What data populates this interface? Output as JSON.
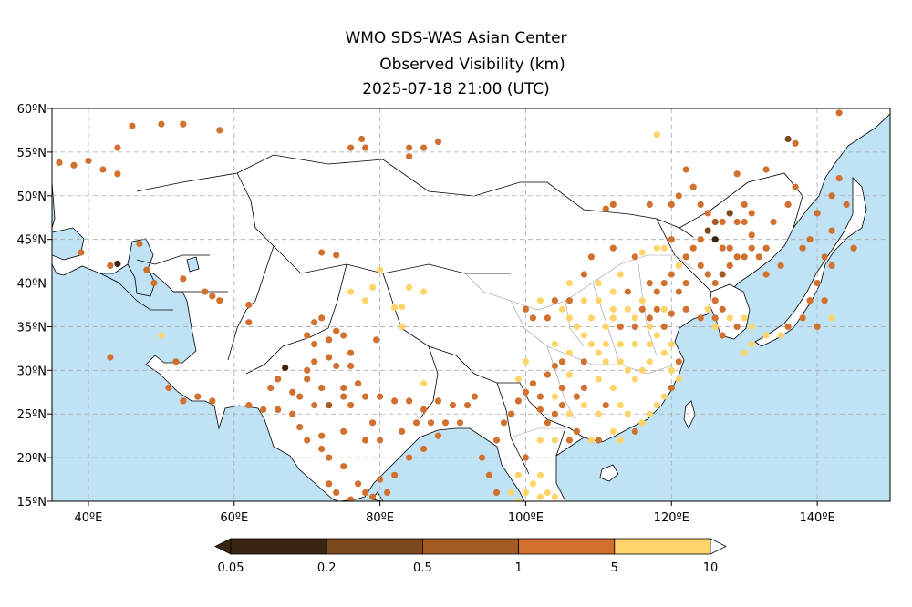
{
  "title": {
    "line1": "WMO SDS-WAS Asian Center",
    "line2": "Observed Visibility (km)",
    "line3": "2025-07-18 21:00 (UTC)"
  },
  "axes": {
    "lon_ticks": [
      "40ºE",
      "60ºE",
      "80ºE",
      "100ºE",
      "120ºE",
      "140ºE"
    ],
    "lon_values": [
      40,
      60,
      80,
      100,
      120,
      140
    ],
    "lat_ticks": [
      "60ºN",
      "55ºN",
      "50ºN",
      "45ºN",
      "40ºN",
      "35ºN",
      "30ºN",
      "25ºN",
      "20ºN",
      "15ºN"
    ],
    "lat_values": [
      60,
      55,
      50,
      45,
      40,
      35,
      30,
      25,
      20,
      15
    ],
    "lon_range": [
      35,
      150
    ],
    "lat_range": [
      15,
      60
    ]
  },
  "colorbar": {
    "labels": [
      "0.05",
      "0.2",
      "0.5",
      "1",
      "5",
      "10"
    ],
    "colors": [
      "#3a2412",
      "#7a4a1e",
      "#a35b24",
      "#d1702f",
      "#ffd46a"
    ]
  },
  "colors": {
    "ocean": "#bfe3f5",
    "land": "#ffffff",
    "border": "#000000",
    "province": "#999999",
    "grid": "#aaaaaa"
  },
  "stations": [
    [
      34.5,
      54.5,
      3
    ],
    [
      36,
      53.8,
      3
    ],
    [
      38,
      53.5,
      3
    ],
    [
      40,
      54,
      3
    ],
    [
      42,
      53,
      3
    ],
    [
      46,
      58,
      3
    ],
    [
      50,
      58.2,
      3
    ],
    [
      53,
      58.2,
      3
    ],
    [
      58,
      57.5,
      3
    ],
    [
      44,
      55.5,
      3
    ],
    [
      44,
      52.5,
      3
    ],
    [
      76,
      55.5,
      3
    ],
    [
      77.5,
      56.5,
      3
    ],
    [
      78,
      55.5,
      3
    ],
    [
      84,
      55.5,
      3
    ],
    [
      84,
      54.5,
      3
    ],
    [
      86,
      55.5,
      3
    ],
    [
      88,
      56.2,
      3
    ],
    [
      39,
      43.5,
      3
    ],
    [
      43,
      42,
      3
    ],
    [
      44,
      42.2,
      0
    ],
    [
      47,
      44.5,
      3
    ],
    [
      48,
      41.5,
      3
    ],
    [
      49,
      40,
      3
    ],
    [
      53,
      40.5,
      3
    ],
    [
      56,
      39,
      3
    ],
    [
      57,
      38.5,
      3
    ],
    [
      58,
      38,
      3
    ],
    [
      62,
      37.5,
      3
    ],
    [
      62,
      35.5,
      3
    ],
    [
      52,
      31,
      3
    ],
    [
      51,
      28,
      3
    ],
    [
      53,
      26.5,
      3
    ],
    [
      55,
      27,
      3
    ],
    [
      57,
      26.5,
      3
    ],
    [
      50,
      34,
      4
    ],
    [
      43,
      31.5,
      3
    ],
    [
      72,
      43.5,
      3
    ],
    [
      74,
      43.2,
      3
    ],
    [
      76,
      39,
      4
    ],
    [
      78,
      38,
      4
    ],
    [
      79,
      39.5,
      4
    ],
    [
      80,
      41.5,
      4
    ],
    [
      82,
      37.2,
      4
    ],
    [
      83,
      37.3,
      4
    ],
    [
      84,
      39.5,
      4
    ],
    [
      86,
      39,
      4
    ],
    [
      67,
      30.3,
      0
    ],
    [
      70,
      34,
      3
    ],
    [
      71,
      35.5,
      3
    ],
    [
      72,
      36,
      3
    ],
    [
      73,
      33.5,
      3
    ],
    [
      74,
      34.5,
      3
    ],
    [
      75,
      34,
      3
    ],
    [
      73,
      31.5,
      3
    ],
    [
      71,
      31,
      3
    ],
    [
      70,
      29,
      3
    ],
    [
      68,
      27.5,
      3
    ],
    [
      66,
      25.5,
      3
    ],
    [
      64,
      25.5,
      3
    ],
    [
      62,
      26,
      3
    ],
    [
      68,
      25,
      3
    ],
    [
      69,
      23.5,
      3
    ],
    [
      71,
      26,
      3
    ],
    [
      72,
      28,
      3
    ],
    [
      74,
      30.5,
      3
    ],
    [
      76,
      30.5,
      3
    ],
    [
      75,
      28,
      3
    ],
    [
      77,
      28.5,
      3
    ],
    [
      78,
      27,
      3
    ],
    [
      80,
      27,
      3
    ],
    [
      82,
      26.5,
      3
    ],
    [
      84,
      26.5,
      3
    ],
    [
      86,
      25.5,
      3
    ],
    [
      88,
      26.5,
      3
    ],
    [
      90,
      26,
      3
    ],
    [
      92,
      26,
      3
    ],
    [
      93,
      27,
      3
    ],
    [
      70,
      22,
      3
    ],
    [
      72,
      22.5,
      3
    ],
    [
      73,
      20,
      3
    ],
    [
      75,
      19,
      3
    ],
    [
      77,
      17,
      3
    ],
    [
      78,
      16,
      3
    ],
    [
      80,
      17.5,
      3
    ],
    [
      82,
      18,
      3
    ],
    [
      84,
      20,
      3
    ],
    [
      86,
      21,
      3
    ],
    [
      88,
      22.5,
      3
    ],
    [
      73,
      17,
      3
    ],
    [
      72,
      21,
      3
    ],
    [
      75,
      23,
      3
    ],
    [
      76,
      26,
      3
    ],
    [
      79,
      24,
      3
    ],
    [
      80,
      22,
      3
    ],
    [
      83,
      23,
      3
    ],
    [
      85,
      24,
      3
    ],
    [
      87,
      24,
      3
    ],
    [
      89,
      24,
      3
    ],
    [
      91,
      24,
      3
    ],
    [
      70,
      30,
      3
    ],
    [
      71,
      33,
      3
    ],
    [
      76,
      32,
      3
    ],
    [
      73,
      26,
      2
    ],
    [
      75,
      27,
      3
    ],
    [
      78,
      22,
      3
    ],
    [
      74,
      16,
      3
    ],
    [
      76,
      15.2,
      3
    ],
    [
      79,
      15.5,
      3
    ],
    [
      81,
      16,
      3
    ],
    [
      69,
      27,
      3
    ],
    [
      65,
      28,
      3
    ],
    [
      66,
      29,
      3
    ],
    [
      79.5,
      33.5,
      3
    ],
    [
      83,
      35,
      4
    ],
    [
      86,
      28.5,
      4
    ],
    [
      98,
      25,
      3
    ],
    [
      99,
      26.5,
      3
    ],
    [
      100,
      27.5,
      3
    ],
    [
      101,
      28.5,
      3
    ],
    [
      103,
      29.5,
      3
    ],
    [
      104,
      30.5,
      3
    ],
    [
      105,
      31,
      3
    ],
    [
      106,
      29.5,
      4
    ],
    [
      104,
      25,
      3
    ],
    [
      102,
      25.5,
      3
    ],
    [
      103,
      24,
      3
    ],
    [
      105,
      26,
      3
    ],
    [
      106,
      25,
      4
    ],
    [
      107,
      27,
      3
    ],
    [
      108,
      28,
      3
    ],
    [
      110,
      29,
      4
    ],
    [
      112,
      28,
      4
    ],
    [
      113,
      26,
      4
    ],
    [
      112,
      23,
      4
    ],
    [
      110,
      22,
      3
    ],
    [
      109,
      22,
      4
    ],
    [
      113,
      22,
      4
    ],
    [
      115,
      23,
      3
    ],
    [
      114,
      25,
      4
    ],
    [
      116,
      24,
      4
    ],
    [
      117,
      25,
      4
    ],
    [
      118,
      26,
      4
    ],
    [
      119,
      27,
      4
    ],
    [
      120,
      28,
      3
    ],
    [
      121,
      29,
      4
    ],
    [
      120,
      30,
      4
    ],
    [
      121,
      31,
      3
    ],
    [
      119,
      32,
      4
    ],
    [
      117,
      31,
      4
    ],
    [
      116,
      30,
      4
    ],
    [
      115,
      29,
      4
    ],
    [
      114,
      30,
      4
    ],
    [
      113,
      31,
      4
    ],
    [
      111,
      31,
      4
    ],
    [
      110,
      32,
      4
    ],
    [
      109,
      33,
      4
    ],
    [
      108,
      34,
      4
    ],
    [
      107,
      35,
      4
    ],
    [
      106,
      36,
      4
    ],
    [
      105,
      37,
      4
    ],
    [
      103,
      36,
      3
    ],
    [
      101,
      36,
      3
    ],
    [
      100,
      37,
      3
    ],
    [
      102,
      38,
      4
    ],
    [
      104,
      38,
      3
    ],
    [
      106,
      38,
      3
    ],
    [
      108,
      38,
      4
    ],
    [
      110,
      38,
      4
    ],
    [
      112,
      37,
      4
    ],
    [
      114,
      37,
      4
    ],
    [
      116,
      37,
      3
    ],
    [
      118,
      37,
      3
    ],
    [
      119,
      35,
      3
    ],
    [
      117,
      35,
      4
    ],
    [
      115,
      35,
      3
    ],
    [
      113,
      35,
      3
    ],
    [
      111,
      35,
      4
    ],
    [
      109,
      36,
      4
    ],
    [
      117,
      33,
      4
    ],
    [
      115,
      33,
      4
    ],
    [
      113,
      33,
      4
    ],
    [
      111,
      33,
      4
    ],
    [
      118,
      34,
      4
    ],
    [
      120,
      33,
      4
    ],
    [
      116,
      38,
      4
    ],
    [
      114,
      39,
      3
    ],
    [
      112,
      39,
      4
    ],
    [
      110,
      40,
      4
    ],
    [
      108,
      41,
      3
    ],
    [
      106,
      40,
      4
    ],
    [
      113,
      41,
      4
    ],
    [
      117,
      40,
      3
    ],
    [
      118,
      39,
      3
    ],
    [
      119,
      40,
      3
    ],
    [
      121,
      39,
      3
    ],
    [
      122,
      40,
      3
    ],
    [
      120,
      41,
      3
    ],
    [
      121,
      42,
      4
    ],
    [
      122,
      43,
      3
    ],
    [
      123,
      44,
      3
    ],
    [
      124,
      45,
      3
    ],
    [
      125,
      46,
      1
    ],
    [
      126,
      45,
      0
    ],
    [
      127,
      44,
      3
    ],
    [
      128,
      44,
      3
    ],
    [
      129,
      43,
      3
    ],
    [
      130,
      43,
      3
    ],
    [
      131,
      44,
      3
    ],
    [
      126,
      47,
      2
    ],
    [
      127,
      47,
      3
    ],
    [
      128,
      48,
      1
    ],
    [
      129,
      47,
      3
    ],
    [
      131,
      48,
      3
    ],
    [
      130,
      47,
      3
    ],
    [
      125,
      48,
      3
    ],
    [
      124,
      49,
      3
    ],
    [
      122,
      53,
      3
    ],
    [
      123,
      51,
      3
    ],
    [
      121,
      50,
      3
    ],
    [
      120,
      49,
      3
    ],
    [
      117,
      49,
      3
    ],
    [
      112,
      49,
      3
    ],
    [
      111,
      48.5,
      3
    ],
    [
      109,
      43,
      3
    ],
    [
      112,
      44,
      3
    ],
    [
      116,
      43.5,
      4
    ],
    [
      118,
      44,
      4
    ],
    [
      120,
      45,
      3
    ],
    [
      119,
      44,
      4
    ],
    [
      115,
      43,
      3
    ],
    [
      124,
      42,
      3
    ],
    [
      125,
      41,
      3
    ],
    [
      126,
      40,
      3
    ],
    [
      127,
      41,
      2
    ],
    [
      128,
      42,
      3
    ],
    [
      126,
      38,
      3
    ],
    [
      127,
      37,
      3
    ],
    [
      128,
      36,
      4
    ],
    [
      129,
      35,
      3
    ],
    [
      127,
      34,
      3
    ],
    [
      126,
      35,
      4
    ],
    [
      124,
      36,
      3
    ],
    [
      130,
      36,
      4
    ],
    [
      125,
      37,
      4
    ],
    [
      126,
      36,
      3
    ],
    [
      122,
      37,
      3
    ],
    [
      120,
      36.5,
      3
    ],
    [
      119,
      37,
      4
    ],
    [
      117,
      36,
      3
    ],
    [
      115,
      36,
      4
    ],
    [
      112,
      36,
      4
    ],
    [
      108,
      31,
      3
    ],
    [
      106,
      32,
      4
    ],
    [
      104,
      33,
      4
    ],
    [
      100,
      31,
      4
    ],
    [
      99,
      29,
      4
    ],
    [
      102,
      27,
      3
    ],
    [
      104,
      27,
      4
    ],
    [
      105,
      28,
      3
    ],
    [
      108,
      26,
      4
    ],
    [
      110,
      25,
      4
    ],
    [
      111,
      26,
      3
    ],
    [
      107,
      23,
      3
    ],
    [
      106,
      22,
      3
    ],
    [
      104,
      22,
      4
    ],
    [
      102,
      22,
      4
    ],
    [
      100,
      20,
      3
    ],
    [
      99,
      18,
      4
    ],
    [
      100,
      16,
      4
    ],
    [
      101,
      17,
      4
    ],
    [
      102,
      18,
      4
    ],
    [
      103,
      16,
      4
    ],
    [
      104,
      15.5,
      4
    ],
    [
      102,
      15.5,
      4
    ],
    [
      97,
      24,
      3
    ],
    [
      96,
      22,
      3
    ],
    [
      94,
      20,
      3
    ],
    [
      95,
      18,
      3
    ],
    [
      96,
      16,
      3
    ],
    [
      98,
      16,
      4
    ],
    [
      99,
      15,
      4
    ],
    [
      137,
      51,
      3
    ],
    [
      136,
      49,
      3
    ],
    [
      134,
      47,
      3
    ],
    [
      133,
      44,
      3
    ],
    [
      132,
      43,
      3
    ],
    [
      131,
      45.5,
      3
    ],
    [
      130,
      49,
      3
    ],
    [
      129,
      52.5,
      3
    ],
    [
      133,
      53,
      3
    ],
    [
      137,
      56,
      3
    ],
    [
      139,
      45,
      3
    ],
    [
      140,
      48,
      3
    ],
    [
      142,
      50,
      3
    ],
    [
      143,
      52,
      3
    ],
    [
      144,
      49,
      3
    ],
    [
      145,
      44,
      3
    ],
    [
      142,
      46,
      3
    ],
    [
      141,
      43,
      3
    ],
    [
      142,
      42,
      3
    ],
    [
      140,
      40,
      3
    ],
    [
      139,
      38,
      3
    ],
    [
      141,
      38,
      3
    ],
    [
      138,
      36,
      3
    ],
    [
      140,
      35,
      3
    ],
    [
      136,
      35,
      3
    ],
    [
      135,
      34,
      4
    ],
    [
      133,
      34,
      4
    ],
    [
      131,
      33,
      4
    ],
    [
      130,
      32,
      4
    ],
    [
      142,
      36,
      4
    ],
    [
      131,
      35,
      4
    ],
    [
      143,
      59.5,
      3
    ],
    [
      136,
      56.5,
      1
    ],
    [
      118,
      57,
      4
    ],
    [
      133,
      41,
      3
    ],
    [
      135,
      42,
      3
    ],
    [
      138,
      44,
      3
    ]
  ]
}
